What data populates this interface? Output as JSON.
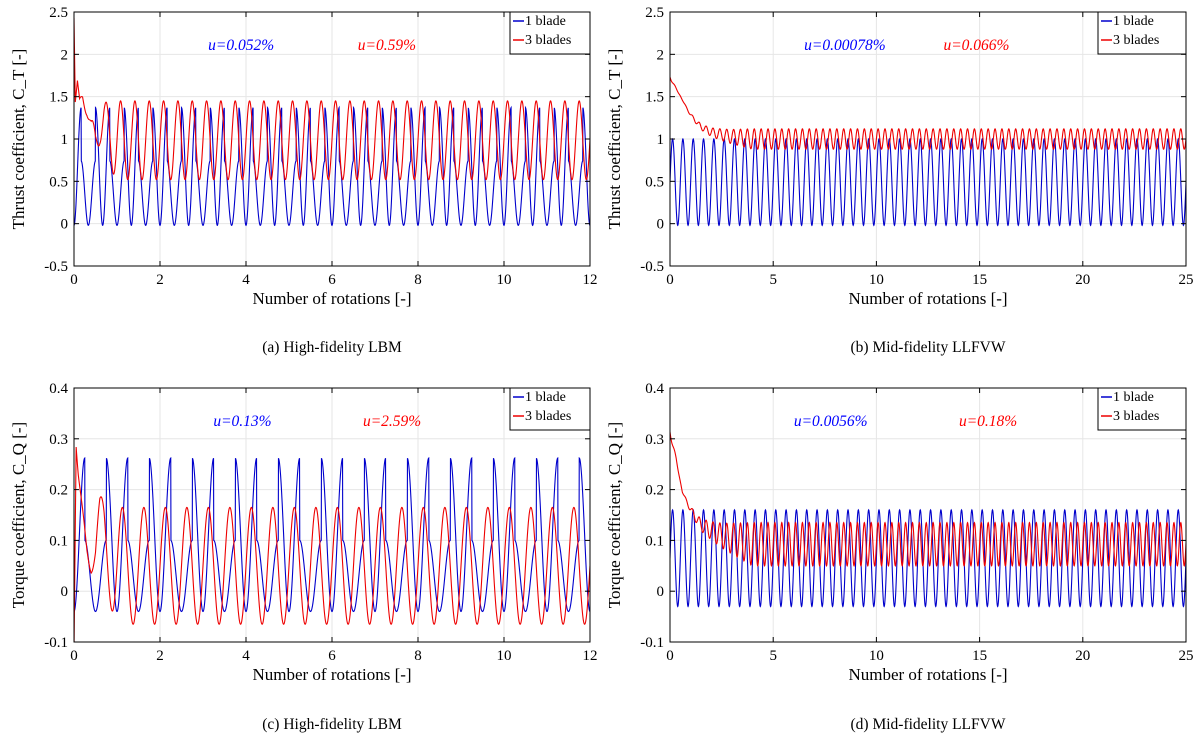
{
  "chart_data": [
    {
      "type": "line",
      "panel": "a",
      "caption": "(a)  High-fidelity LBM",
      "xlabel": "Number of rotations [-]",
      "ylabel": "Thrust coefficient, C_T [-]",
      "xlim": [
        0,
        12
      ],
      "ylim": [
        -0.5,
        2.5
      ],
      "xticks": [
        0,
        2,
        4,
        6,
        8,
        10,
        12
      ],
      "yticks": [
        -0.5,
        0,
        0.5,
        1,
        1.5,
        2,
        2.5
      ],
      "grid": true,
      "legend_position": "top-right",
      "annotations": [
        {
          "text": "u=0.052%",
          "color": "#0000ff"
        },
        {
          "text": "u=0.59%",
          "color": "#ff0000"
        }
      ],
      "series": [
        {
          "name": "1 blade",
          "color": "#0000cc",
          "periodic": {
            "period": 0.3333,
            "max": 1.37,
            "min": -0.02,
            "secondary_max": 0.74,
            "x_start": 0.1
          }
        },
        {
          "name": "3 blades",
          "color": "#ee0000",
          "periodic": {
            "period": 0.3333,
            "max": 1.45,
            "min": 0.52,
            "x_start": 1.0
          },
          "transient": [
            [
              0,
              2.5
            ],
            [
              0.03,
              1.55
            ],
            [
              0.08,
              1.85
            ],
            [
              0.13,
              1.62
            ],
            [
              0.2,
              1.72
            ],
            [
              0.3,
              1.55
            ],
            [
              0.4,
              1.2
            ],
            [
              0.5,
              1.15
            ],
            [
              0.6,
              1.55
            ],
            [
              0.7,
              1.65
            ],
            [
              0.8,
              1.4
            ],
            [
              0.9,
              1.3
            ],
            [
              1.0,
              1.45
            ]
          ]
        }
      ]
    },
    {
      "type": "line",
      "panel": "b",
      "caption": "(b)  Mid-fidelity LLFVW",
      "xlabel": "Number of rotations [-]",
      "ylabel": "Thrust coefficient, C_T [-]",
      "xlim": [
        0,
        25
      ],
      "ylim": [
        -0.5,
        2.5
      ],
      "xticks": [
        0,
        5,
        10,
        15,
        20,
        25
      ],
      "yticks": [
        -0.5,
        0,
        0.5,
        1,
        1.5,
        2,
        2.5
      ],
      "grid": true,
      "legend_position": "top-right",
      "annotations": [
        {
          "text": "u=0.00078%",
          "color": "#0000ff"
        },
        {
          "text": "u=0.066%",
          "color": "#ff0000"
        }
      ],
      "series": [
        {
          "name": "1 blade",
          "color": "#0000cc",
          "periodic": {
            "period": 0.5,
            "max": 1.0,
            "min": -0.02,
            "x_start": 0
          }
        },
        {
          "name": "3 blades",
          "color": "#ee0000",
          "periodic": {
            "period": 0.3333,
            "max": 1.12,
            "min": 0.88,
            "x_start": 0
          },
          "transient": [
            [
              0,
              1.75
            ],
            [
              0.5,
              1.6
            ],
            [
              1.0,
              1.4
            ],
            [
              1.5,
              1.25
            ],
            [
              2.0,
              1.18
            ],
            [
              3.0,
              1.13
            ],
            [
              4.0,
              1.12
            ]
          ]
        }
      ]
    },
    {
      "type": "line",
      "panel": "c",
      "caption": "(c)  High-fidelity LBM",
      "xlabel": "Number of rotations [-]",
      "ylabel": "Torque coefficient, C_Q [-]",
      "xlim": [
        0,
        12
      ],
      "ylim": [
        -0.1,
        0.4
      ],
      "xticks": [
        0,
        2,
        4,
        6,
        8,
        10,
        12
      ],
      "yticks": [
        -0.1,
        0,
        0.1,
        0.2,
        0.3,
        0.4
      ],
      "grid": true,
      "legend_position": "top-right",
      "annotations": [
        {
          "text": "u=0.13%",
          "color": "#0000ff"
        },
        {
          "text": "u=2.59%",
          "color": "#ff0000"
        }
      ],
      "series": [
        {
          "name": "1 blade",
          "color": "#0000cc",
          "periodic": {
            "period": 0.5,
            "max": 0.262,
            "min": -0.04,
            "secondary_max": 0.1,
            "x_start": 0.1
          }
        },
        {
          "name": "3 blades",
          "color": "#ee0000",
          "periodic": {
            "period": 0.5,
            "max": 0.165,
            "min": -0.065,
            "x_start": 1.0
          },
          "transient": [
            [
              0,
              -0.1
            ],
            [
              0.05,
              0.32
            ],
            [
              0.1,
              0.27
            ],
            [
              0.2,
              0.2
            ],
            [
              0.3,
              0.13
            ],
            [
              0.4,
              0.1
            ],
            [
              0.5,
              0.12
            ],
            [
              0.6,
              0.25
            ],
            [
              0.7,
              0.27
            ],
            [
              0.8,
              0.2
            ],
            [
              1.0,
              0.1
            ]
          ]
        }
      ]
    },
    {
      "type": "line",
      "panel": "d",
      "caption": "(d)  Mid-fidelity LLFVW",
      "xlabel": "Number of rotations [-]",
      "ylabel": "Torque coefficient, C_Q [-]",
      "xlim": [
        0,
        25
      ],
      "ylim": [
        -0.1,
        0.4
      ],
      "xticks": [
        0,
        5,
        10,
        15,
        20,
        25
      ],
      "yticks": [
        -0.1,
        0,
        0.1,
        0.2,
        0.3,
        0.4
      ],
      "grid": true,
      "legend_position": "top-right",
      "annotations": [
        {
          "text": "u=0.0056%",
          "color": "#0000ff"
        },
        {
          "text": "u=0.18%",
          "color": "#ff0000"
        }
      ],
      "series": [
        {
          "name": "1 blade",
          "color": "#0000cc",
          "periodic": {
            "period": 0.5,
            "max": 0.16,
            "min": -0.03,
            "x_start": 0
          }
        },
        {
          "name": "3 blades",
          "color": "#ee0000",
          "periodic": {
            "period": 0.3333,
            "max": 0.135,
            "min": 0.05,
            "x_start": 0
          },
          "transient": [
            [
              0,
              0.32
            ],
            [
              0.3,
              0.28
            ],
            [
              0.6,
              0.22
            ],
            [
              1.0,
              0.19
            ],
            [
              1.5,
              0.16
            ],
            [
              2.5,
              0.145
            ],
            [
              4.0,
              0.14
            ]
          ]
        }
      ]
    }
  ]
}
